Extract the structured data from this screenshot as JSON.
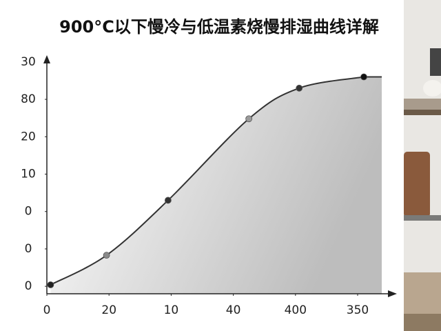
{
  "chart_data": {
    "type": "line",
    "title": "900°C以下慢冷与低温素烧慢排湿曲线详解",
    "xlim": [
      0,
      5.3
    ],
    "xticks": [
      {
        "value": 0,
        "label": "0"
      },
      {
        "value": 1,
        "label": "20"
      },
      {
        "value": 2,
        "label": "10"
      },
      {
        "value": 3,
        "label": "40"
      },
      {
        "value": 4,
        "label": "400"
      },
      {
        "value": 5,
        "label": "350"
      }
    ],
    "ylim": [
      -0.2,
      6.2
    ],
    "yticks": [
      {
        "value": 0,
        "label": "0"
      },
      {
        "value": 1,
        "label": "0"
      },
      {
        "value": 2,
        "label": "0"
      },
      {
        "value": 3,
        "label": "10"
      },
      {
        "value": 4,
        "label": "20"
      },
      {
        "value": 5,
        "label": "80"
      },
      {
        "value": 6,
        "label": "30"
      }
    ],
    "series": [
      {
        "color": "#333333",
        "x": [
          0.06,
          0.96,
          1.95,
          3.25,
          4.06,
          5.1
        ],
        "values": [
          0.04,
          0.83,
          2.3,
          4.48,
          5.3,
          5.6
        ],
        "point_colors": [
          "#222222",
          "#8a8a8a",
          "#333333",
          "#9a9a9a",
          "#333333",
          "#111111"
        ]
      }
    ]
  }
}
